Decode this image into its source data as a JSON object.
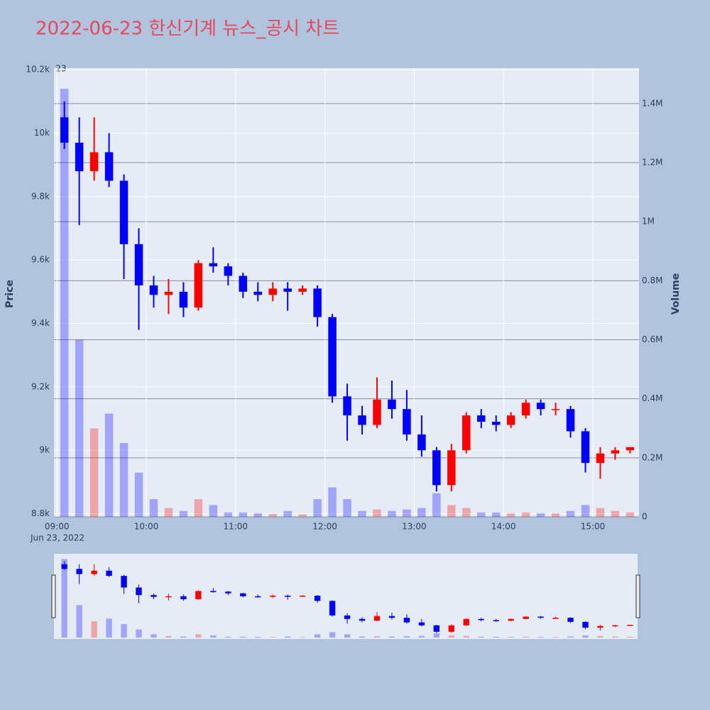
{
  "chart_data": {
    "type": "candlestick",
    "title": "2022-06-23 한신기계 뉴스_공시 차트",
    "annotation": "23",
    "x_date_label": "Jun 23, 2022",
    "y_title": "Price",
    "y2_title": "Volume",
    "x": [
      "09:00",
      "09:10",
      "09:20",
      "09:30",
      "09:40",
      "09:50",
      "10:00",
      "10:10",
      "10:20",
      "10:30",
      "10:40",
      "10:50",
      "11:00",
      "11:10",
      "11:20",
      "11:30",
      "11:40",
      "11:50",
      "12:00",
      "12:10",
      "12:20",
      "12:30",
      "12:40",
      "12:50",
      "13:00",
      "13:10",
      "13:20",
      "13:30",
      "13:40",
      "13:50",
      "14:00",
      "14:10",
      "14:20",
      "14:30",
      "14:40",
      "14:50",
      "15:00",
      "15:10",
      "15:20"
    ],
    "open": [
      10050,
      9970,
      9880,
      9940,
      9850,
      9650,
      9520,
      9490,
      9500,
      9450,
      9590,
      9580,
      9550,
      9500,
      9490,
      9510,
      9500,
      9510,
      9420,
      9170,
      9110,
      9080,
      9160,
      9130,
      9050,
      9000,
      8890,
      9000,
      9110,
      9090,
      9080,
      9110,
      9150,
      9130,
      9130,
      9060,
      8960,
      8990,
      9000
    ],
    "high": [
      10100,
      10050,
      10050,
      10000,
      9870,
      9700,
      9550,
      9540,
      9530,
      9600,
      9640,
      9590,
      9560,
      9530,
      9530,
      9530,
      9520,
      9520,
      9430,
      9210,
      9140,
      9230,
      9220,
      9190,
      9110,
      9010,
      9020,
      9120,
      9130,
      9110,
      9120,
      9160,
      9160,
      9150,
      9140,
      9070,
      9010,
      9010,
      9010
    ],
    "low": [
      9950,
      9710,
      9850,
      9830,
      9540,
      9380,
      9450,
      9430,
      9420,
      9440,
      9560,
      9520,
      9480,
      9470,
      9470,
      9440,
      9490,
      9390,
      9150,
      9030,
      9050,
      9070,
      9100,
      9030,
      8980,
      8870,
      8870,
      8990,
      9070,
      9060,
      9070,
      9100,
      9110,
      9110,
      9040,
      8930,
      8910,
      8970,
      8990
    ],
    "close": [
      9970,
      9880,
      9940,
      9850,
      9650,
      9520,
      9490,
      9500,
      9450,
      9590,
      9580,
      9550,
      9500,
      9490,
      9510,
      9500,
      9510,
      9420,
      9170,
      9110,
      9080,
      9160,
      9130,
      9050,
      9000,
      8890,
      9000,
      9110,
      9090,
      9080,
      9110,
      9150,
      9130,
      9130,
      9060,
      8960,
      8990,
      9000,
      9010
    ],
    "volume": [
      1450000,
      600000,
      300000,
      350000,
      250000,
      150000,
      60000,
      30000,
      20000,
      60000,
      40000,
      15000,
      15000,
      12000,
      10000,
      20000,
      8000,
      60000,
      100000,
      60000,
      20000,
      25000,
      20000,
      25000,
      30000,
      80000,
      40000,
      30000,
      15000,
      15000,
      12000,
      15000,
      12000,
      12000,
      20000,
      40000,
      30000,
      20000,
      15000
    ],
    "increasing_color": "#ff0000",
    "decreasing_color": "#0000ff",
    "xlim": [
      "08:58",
      "15:31"
    ],
    "xticks": [
      "09:00",
      "10:00",
      "11:00",
      "12:00",
      "13:00",
      "14:00",
      "15:00"
    ],
    "ylim": [
      8790,
      10205
    ],
    "yticks": [
      {
        "value": 8800,
        "label": "8.8k"
      },
      {
        "value": 9000,
        "label": "9k"
      },
      {
        "value": 9200,
        "label": "9.2k"
      },
      {
        "value": 9400,
        "label": "9.4k"
      },
      {
        "value": 9600,
        "label": "9.6k"
      },
      {
        "value": 9800,
        "label": "9.8k"
      },
      {
        "value": 10000,
        "label": "10k"
      },
      {
        "value": 10200,
        "label": "10.2k"
      }
    ],
    "y2lim": [
      0,
      1520000
    ],
    "y2ticks": [
      0,
      {
        "value": 200000,
        "label": "0.2M"
      },
      {
        "value": 400000,
        "label": "0.4M"
      },
      {
        "value": 600000,
        "label": "0.6M"
      },
      {
        "value": 800000,
        "label": "0.8M"
      },
      {
        "value": 1000000,
        "label": "1M"
      },
      {
        "value": 1200000,
        "label": "1.2M"
      },
      {
        "value": 1400000,
        "label": "1.4M"
      }
    ],
    "grid": true,
    "range_slider": true
  }
}
